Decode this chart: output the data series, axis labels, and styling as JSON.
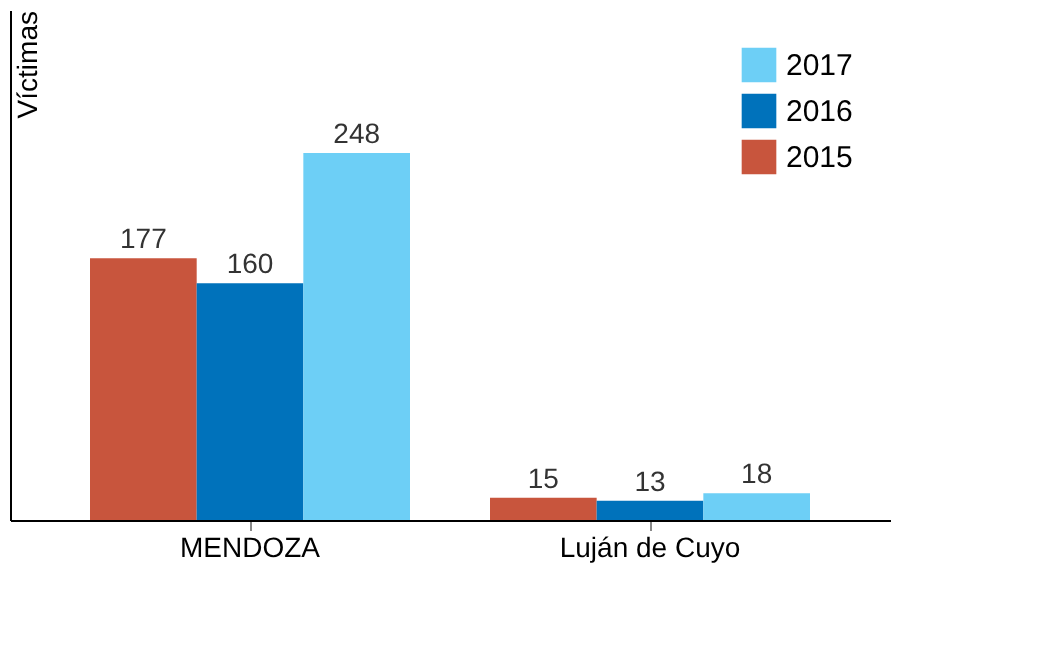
{
  "chart_data": {
    "type": "bar",
    "ylabel": "Víctimas",
    "categories": [
      "MENDOZA",
      "Luján de Cuyo"
    ],
    "series": [
      {
        "name": "2015",
        "color": "#c8553d",
        "values": [
          177,
          15
        ]
      },
      {
        "name": "2016",
        "color": "#0072bb",
        "values": [
          160,
          13
        ]
      },
      {
        "name": "2017",
        "color": "#6dcff6",
        "values": [
          248,
          18
        ]
      }
    ],
    "data_labels": true,
    "legend": "top right",
    "grid": false,
    "tick_labels": "x"
  }
}
